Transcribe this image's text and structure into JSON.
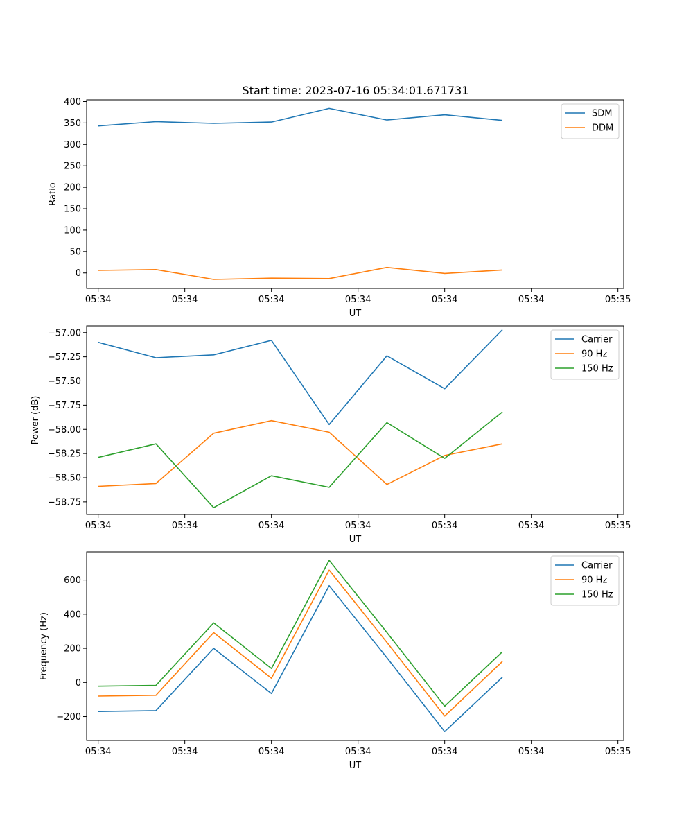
{
  "figure": {
    "title": "Start time: 2023-07-16 05:34:01.671731"
  },
  "chart_data": [
    {
      "type": "line",
      "title": "Start time: 2023-07-16 05:34:01.671731",
      "xlabel": "UT",
      "ylabel": "Ratio",
      "x": [
        1,
        2,
        3,
        4,
        5,
        6,
        7,
        8
      ],
      "xlim": [
        0.8,
        10.1
      ],
      "xticks": [
        1,
        2.5,
        4,
        5.5,
        7,
        8.5,
        10
      ],
      "xtick_labels": [
        "05:34",
        "05:34",
        "05:34",
        "05:34",
        "05:34",
        "05:34",
        "05:34"
      ],
      "xtick_last_label": "05:35",
      "ylim": [
        -36,
        404
      ],
      "yticks": [
        0,
        50,
        100,
        150,
        200,
        250,
        300,
        350,
        400
      ],
      "ytick_labels": [
        "0",
        "50",
        "100",
        "150",
        "200",
        "250",
        "300",
        "350",
        "400"
      ],
      "legend_position": "top-right",
      "series": [
        {
          "name": "SDM",
          "color": "#1f77b4",
          "values": [
            343,
            353,
            349,
            352,
            384,
            357,
            369,
            356
          ]
        },
        {
          "name": "DDM",
          "color": "#ff7f0e",
          "values": [
            6,
            8,
            -15,
            -12,
            -13,
            13,
            -1,
            7
          ]
        }
      ]
    },
    {
      "type": "line",
      "title": "",
      "xlabel": "UT",
      "ylabel": "Power (dB)",
      "x": [
        1,
        2,
        3,
        4,
        5,
        6,
        7,
        8
      ],
      "xlim": [
        0.8,
        10.1
      ],
      "xticks": [
        1,
        2.5,
        4,
        5.5,
        7,
        8.5,
        10
      ],
      "xtick_labels": [
        "05:34",
        "05:34",
        "05:34",
        "05:34",
        "05:34",
        "05:34",
        "05:34"
      ],
      "xtick_last_label": "05:35",
      "ylim": [
        -58.88,
        -56.93
      ],
      "yticks": [
        -58.75,
        -58.5,
        -58.25,
        -58.0,
        -57.75,
        -57.5,
        -57.25,
        -57.0
      ],
      "ytick_labels": [
        "−58.75",
        "−58.50",
        "−58.25",
        "−58.00",
        "−57.75",
        "−57.50",
        "−57.25",
        "−57.00"
      ],
      "legend_position": "top-right",
      "series": [
        {
          "name": "Carrier",
          "color": "#1f77b4",
          "values": [
            -57.1,
            -57.26,
            -57.23,
            -57.08,
            -57.95,
            -57.24,
            -57.58,
            -56.97
          ]
        },
        {
          "name": "90 Hz",
          "color": "#ff7f0e",
          "values": [
            -58.59,
            -58.56,
            -58.04,
            -57.91,
            -58.03,
            -58.57,
            -58.27,
            -58.15
          ]
        },
        {
          "name": "150 Hz",
          "color": "#2ca02c",
          "values": [
            -58.29,
            -58.15,
            -58.81,
            -58.48,
            -58.6,
            -57.93,
            -58.3,
            -57.82
          ]
        }
      ]
    },
    {
      "type": "line",
      "title": "",
      "xlabel": "UT",
      "ylabel": "Frequency (Hz)",
      "x": [
        1,
        2,
        3,
        4,
        5,
        6,
        7,
        8
      ],
      "xlim": [
        0.8,
        10.1
      ],
      "xticks": [
        1,
        2.5,
        4,
        5.5,
        7,
        8.5,
        10
      ],
      "xtick_labels": [
        "05:34",
        "05:34",
        "05:34",
        "05:34",
        "05:34",
        "05:34",
        "05:34"
      ],
      "xtick_last_label": "05:35",
      "ylim": [
        -340,
        765
      ],
      "yticks": [
        -200,
        0,
        200,
        400,
        600
      ],
      "ytick_labels": [
        "−200",
        "0",
        "200",
        "400",
        "600"
      ],
      "legend_position": "top-right",
      "series": [
        {
          "name": "Carrier",
          "color": "#1f77b4",
          "values": [
            -170,
            -165,
            200,
            -65,
            567,
            145,
            -288,
            31
          ]
        },
        {
          "name": "90 Hz",
          "color": "#ff7f0e",
          "values": [
            -80,
            -75,
            292,
            25,
            658,
            235,
            -197,
            123
          ]
        },
        {
          "name": "150 Hz",
          "color": "#2ca02c",
          "values": [
            -22,
            -17,
            349,
            82,
            716,
            293,
            -139,
            180
          ]
        }
      ]
    }
  ]
}
